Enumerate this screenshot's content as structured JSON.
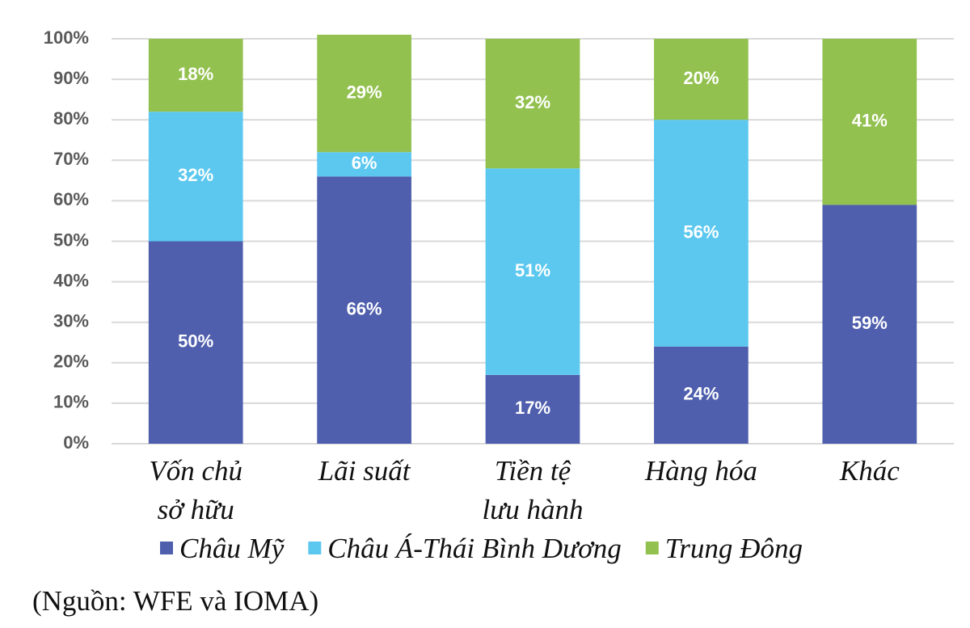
{
  "chart_data": {
    "type": "stacked_bar",
    "categories": [
      [
        "Vốn chủ",
        "sở hữu"
      ],
      [
        "Lãi suất"
      ],
      [
        "Tiền tệ",
        "lưu hành"
      ],
      [
        "Hàng hóa"
      ],
      [
        "Khác"
      ]
    ],
    "series": [
      {
        "name": "Châu Mỹ",
        "color": "#4f5fad",
        "values": [
          50,
          66,
          17,
          24,
          59
        ],
        "value_labels": [
          "50%",
          "66%",
          "17%",
          "24%",
          "59%"
        ]
      },
      {
        "name": "Châu Á-Thái Bình Dương",
        "color": "#5cc8ef",
        "values": [
          32,
          6,
          51,
          56,
          null
        ],
        "value_labels": [
          "32%",
          "6%",
          "51%",
          "56%",
          null
        ]
      },
      {
        "name": "Trung Đông",
        "color": "#93c150",
        "values": [
          18,
          29,
          32,
          20,
          41
        ],
        "value_labels": [
          "18%",
          "29%",
          "32%",
          "20%",
          "41%"
        ]
      }
    ],
    "ylim": [
      0,
      100
    ],
    "yticks": [
      {
        "value": 0,
        "label": "0%"
      },
      {
        "value": 10,
        "label": "10%"
      },
      {
        "value": 20,
        "label": "20%"
      },
      {
        "value": 30,
        "label": "30%"
      },
      {
        "value": 40,
        "label": "40%"
      },
      {
        "value": 50,
        "label": "50%"
      },
      {
        "value": 60,
        "label": "60%"
      },
      {
        "value": 70,
        "label": "70%"
      },
      {
        "value": 80,
        "label": "80%"
      },
      {
        "value": 90,
        "label": "90%"
      },
      {
        "value": 100,
        "label": "100%"
      }
    ],
    "grid": true,
    "legend": "bottom",
    "source": "(Nguồn: WFE và IOMA)"
  }
}
